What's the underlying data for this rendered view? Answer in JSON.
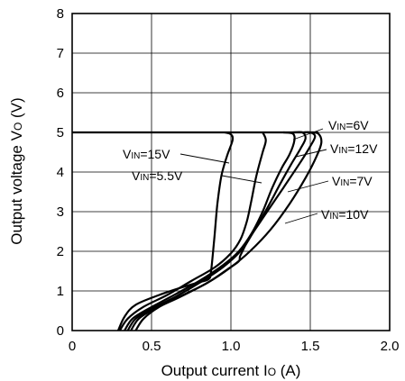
{
  "chart_data": {
    "type": "line",
    "xlabel": "Output current IO (A)",
    "ylabel": "Output voltage VO (V)",
    "xlim": [
      0,
      2.0
    ],
    "ylim": [
      0,
      8
    ],
    "xticks": [
      0,
      0.5,
      1.0,
      1.5,
      2.0
    ],
    "xtick_labels": [
      "0",
      "0.5",
      "1.0",
      "1.5",
      "2.0"
    ],
    "yticks": [
      0,
      1,
      2,
      3,
      4,
      5,
      6,
      7,
      8
    ],
    "ytick_labels": [
      "0",
      "1",
      "2",
      "3",
      "4",
      "5",
      "6",
      "7",
      "8"
    ],
    "grid": true,
    "series": [
      {
        "name": "VIN=15V",
        "points": [
          [
            0.29,
            0
          ],
          [
            0.33,
            0.35
          ],
          [
            0.4,
            0.65
          ],
          [
            0.55,
            0.9
          ],
          [
            0.7,
            1.1
          ],
          [
            0.8,
            1.22
          ],
          [
            0.86,
            1.3
          ],
          [
            0.875,
            1.5
          ],
          [
            0.895,
            2.3
          ],
          [
            0.915,
            3.2
          ],
          [
            0.94,
            3.9
          ],
          [
            0.975,
            4.4
          ],
          [
            1.01,
            4.8
          ],
          [
            1.0,
            4.95
          ],
          [
            0.96,
            5.0
          ]
        ]
      },
      {
        "name": "VIN=5.5V",
        "points": [
          [
            0.3,
            0
          ],
          [
            0.35,
            0.3
          ],
          [
            0.45,
            0.6
          ],
          [
            0.6,
            0.9
          ],
          [
            0.75,
            1.25
          ],
          [
            0.9,
            1.6
          ],
          [
            1.0,
            1.95
          ],
          [
            1.06,
            2.3
          ],
          [
            1.1,
            2.75
          ],
          [
            1.13,
            3.3
          ],
          [
            1.16,
            3.9
          ],
          [
            1.2,
            4.5
          ],
          [
            1.22,
            4.8
          ],
          [
            1.2,
            5.0
          ]
        ]
      },
      {
        "name": "VIN=6V",
        "points": [
          [
            0.33,
            0
          ],
          [
            0.38,
            0.3
          ],
          [
            0.48,
            0.55
          ],
          [
            0.62,
            0.85
          ],
          [
            0.8,
            1.25
          ],
          [
            0.95,
            1.65
          ],
          [
            1.05,
            2.0
          ],
          [
            1.13,
            2.45
          ],
          [
            1.2,
            3.0
          ],
          [
            1.26,
            3.6
          ],
          [
            1.32,
            4.1
          ],
          [
            1.37,
            4.45
          ],
          [
            1.4,
            4.8
          ],
          [
            1.39,
            4.97
          ],
          [
            1.33,
            5.0
          ]
        ]
      },
      {
        "name": "VIN=12V",
        "points": [
          [
            0.35,
            0
          ],
          [
            0.4,
            0.3
          ],
          [
            0.5,
            0.55
          ],
          [
            0.65,
            0.85
          ],
          [
            0.8,
            1.2
          ],
          [
            0.95,
            1.6
          ],
          [
            1.07,
            2.05
          ],
          [
            1.15,
            2.55
          ],
          [
            1.23,
            3.1
          ],
          [
            1.31,
            3.7
          ],
          [
            1.38,
            4.2
          ],
          [
            1.44,
            4.6
          ],
          [
            1.47,
            4.85
          ],
          [
            1.45,
            5.0
          ],
          [
            1.39,
            5.0
          ]
        ]
      },
      {
        "name": "VIN=7V",
        "points": [
          [
            0.37,
            0
          ],
          [
            0.42,
            0.3
          ],
          [
            0.52,
            0.55
          ],
          [
            0.68,
            0.85
          ],
          [
            0.85,
            1.2
          ],
          [
            0.98,
            1.55
          ],
          [
            1.05,
            1.75
          ],
          [
            1.06,
            1.9
          ],
          [
            1.12,
            2.35
          ],
          [
            1.22,
            2.95
          ],
          [
            1.33,
            3.6
          ],
          [
            1.43,
            4.2
          ],
          [
            1.5,
            4.65
          ],
          [
            1.53,
            4.9
          ],
          [
            1.5,
            5.0
          ],
          [
            1.46,
            5.0
          ]
        ]
      },
      {
        "name": "VIN=10V",
        "points": [
          [
            0.4,
            0
          ],
          [
            0.45,
            0.3
          ],
          [
            0.55,
            0.6
          ],
          [
            0.7,
            0.9
          ],
          [
            0.85,
            1.2
          ],
          [
            1.0,
            1.6
          ],
          [
            1.12,
            2.0
          ],
          [
            1.25,
            2.55
          ],
          [
            1.37,
            3.2
          ],
          [
            1.47,
            3.85
          ],
          [
            1.54,
            4.4
          ],
          [
            1.57,
            4.75
          ],
          [
            1.55,
            4.97
          ],
          [
            1.5,
            5.0
          ]
        ]
      }
    ],
    "limit_line": {
      "x": [
        0,
        1.55
      ],
      "y": 5
    }
  },
  "annotations": [
    {
      "main": "V",
      "sub": "IN",
      "value": "=6V"
    },
    {
      "main": "V",
      "sub": "IN",
      "value": "=12V"
    },
    {
      "main": "V",
      "sub": "IN",
      "value": "=7V"
    },
    {
      "main": "V",
      "sub": "IN",
      "value": "=10V"
    },
    {
      "main": "V",
      "sub": "IN",
      "value": "=15V"
    },
    {
      "main": "V",
      "sub": "IN",
      "value": "=5.5V"
    }
  ],
  "axis_text": {
    "x_main": "Output current I",
    "x_sub": "O",
    "x_unit": " (A)",
    "y_main": "Output voltage V",
    "y_sub": "O",
    "y_unit": " (V)"
  }
}
